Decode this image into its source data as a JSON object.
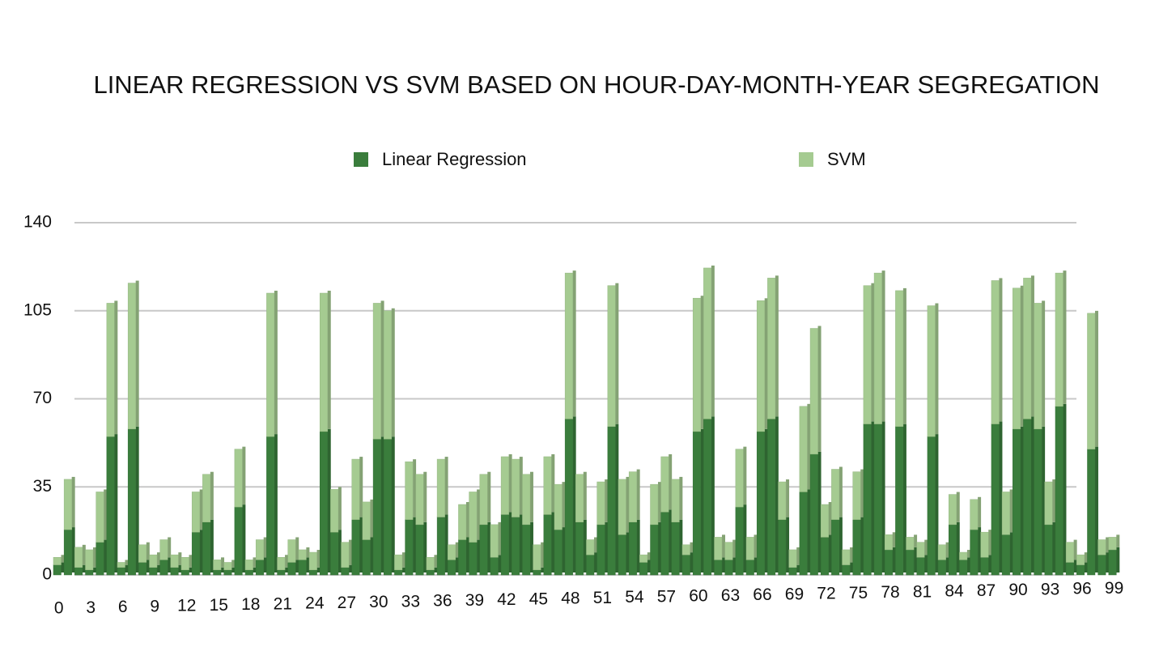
{
  "chart_data": {
    "type": "stacked_bar",
    "title": "LINEAR REGRESSION VS SVM BASED ON HOUR-DAY-MONTH-YEAR SEGREGATION",
    "categories": [
      "0",
      null,
      null,
      "3",
      null,
      null,
      "6",
      null,
      null,
      "9",
      null,
      null,
      "12",
      null,
      null,
      "15",
      null,
      null,
      "18",
      null,
      null,
      "21",
      null,
      null,
      "24",
      null,
      null,
      "27",
      null,
      null,
      "30",
      null,
      null,
      "33",
      null,
      null,
      "36",
      null,
      null,
      "39",
      null,
      null,
      "42",
      null,
      null,
      "45",
      null,
      null,
      "48",
      null,
      null,
      "51",
      null,
      null,
      "54",
      null,
      null,
      "57",
      null,
      null,
      "60",
      null,
      null,
      "63",
      null,
      null,
      "66",
      null,
      null,
      "69",
      null,
      null,
      "72",
      null,
      null,
      "75",
      null,
      null,
      "78",
      null,
      null,
      "81",
      null,
      null,
      "84",
      null,
      null,
      "87",
      null,
      null,
      "90",
      null,
      null,
      "93",
      null,
      null,
      "96",
      null,
      null,
      "99"
    ],
    "series": [
      {
        "name": "Linear Regression",
        "color": "#3a7d3c",
        "values": [
          4,
          18,
          3,
          2,
          13,
          55,
          3,
          58,
          5,
          3,
          6,
          3,
          2,
          17,
          21,
          2,
          2,
          27,
          2,
          6,
          55,
          2,
          5,
          6,
          2,
          57,
          17,
          3,
          22,
          14,
          54,
          54,
          2,
          22,
          20,
          2,
          23,
          6,
          14,
          13,
          20,
          7,
          24,
          23,
          20,
          2,
          24,
          18,
          62,
          21,
          8,
          20,
          59,
          16,
          21,
          5,
          20,
          25,
          21,
          8,
          57,
          62,
          6,
          6,
          27,
          6,
          57,
          62,
          22,
          3,
          33,
          48,
          15,
          22,
          4,
          22,
          60,
          60,
          10,
          59,
          10,
          7,
          55,
          6,
          20,
          6,
          18,
          7,
          60,
          16,
          58,
          62,
          58,
          20,
          67,
          5,
          4,
          50,
          8,
          10
        ]
      },
      {
        "name": "SVM",
        "color": "#a5cb91",
        "values": [
          3,
          20,
          8,
          8,
          20,
          53,
          2,
          58,
          7,
          5,
          8,
          5,
          5,
          16,
          19,
          4,
          3,
          23,
          4,
          8,
          57,
          5,
          9,
          4,
          7,
          55,
          17,
          10,
          24,
          15,
          54,
          51,
          6,
          23,
          20,
          5,
          23,
          6,
          14,
          20,
          20,
          13,
          23,
          23,
          20,
          10,
          23,
          18,
          58,
          19,
          6,
          17,
          56,
          22,
          20,
          3,
          16,
          22,
          17,
          4,
          53,
          60,
          9,
          7,
          23,
          9,
          52,
          56,
          15,
          7,
          34,
          50,
          13,
          20,
          6,
          19,
          55,
          60,
          6,
          54,
          5,
          6,
          52,
          6,
          12,
          3,
          12,
          10,
          57,
          17,
          56,
          56,
          50,
          17,
          53,
          8,
          4,
          54,
          6,
          5
        ]
      }
    ],
    "ylim": [
      0,
      140
    ],
    "yticks": [
      0,
      35,
      70,
      105,
      140
    ],
    "grid": true,
    "legend": "top"
  }
}
